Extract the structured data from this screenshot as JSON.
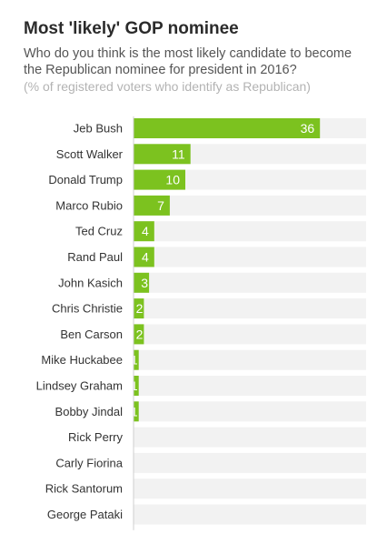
{
  "title": "Most 'likely' GOP nominee",
  "subtitle": "Who do you think is the most likely candidate to become the Republican nominee for president in 2016?",
  "note": "(% of registered voters who identify as Republican)",
  "colors": {
    "bar": "#7cc21f",
    "track": "#f2f2f2",
    "axis": "#cfcfcf"
  },
  "chart_data": {
    "type": "bar",
    "orientation": "horizontal",
    "categories": [
      "Jeb Bush",
      "Scott Walker",
      "Donald Trump",
      "Marco Rubio",
      "Ted Cruz",
      "Rand Paul",
      "John Kasich",
      "Chris Christie",
      "Ben Carson",
      "Mike Huckabee",
      "Lindsey Graham",
      "Bobby Jindal",
      "Rick Perry",
      "Carly Fiorina",
      "Rick Santorum",
      "George Pataki"
    ],
    "values": [
      36,
      11,
      10,
      7,
      4,
      4,
      3,
      2,
      2,
      1,
      1,
      1,
      0,
      0,
      0,
      0
    ],
    "value_labels": [
      "36",
      "11",
      "10",
      "7",
      "4",
      "4",
      "3",
      "2",
      "2",
      "1",
      "1",
      "1",
      "",
      "",
      "",
      ""
    ],
    "xlim": [
      0,
      40
    ],
    "grid": false
  }
}
